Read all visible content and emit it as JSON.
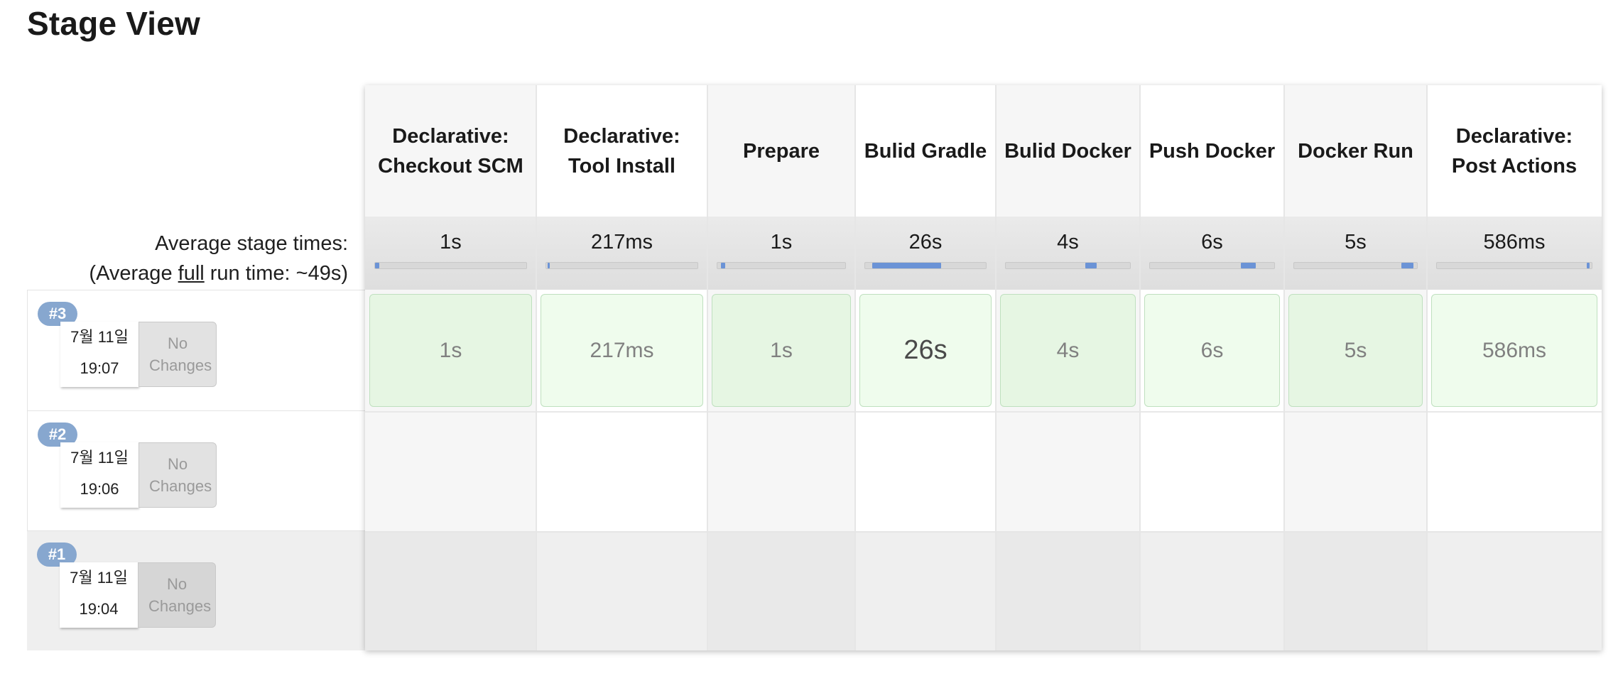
{
  "page": {
    "title": "Stage View"
  },
  "summary": {
    "line1": "Average stage times:",
    "line2_prefix": "(Average ",
    "line2_link": "full",
    "line2_suffix": " run time: ~49s)"
  },
  "stages": [
    {
      "name": "Declarative: Checkout SCM",
      "avg": "1s",
      "bar_start": 0.0,
      "bar_fill": 0.03
    },
    {
      "name": "Declarative: Tool Install",
      "avg": "217ms",
      "bar_start": 0.01,
      "bar_fill": 0.01
    },
    {
      "name": "Prepare",
      "avg": "1s",
      "bar_start": 0.03,
      "bar_fill": 0.03
    },
    {
      "name": "Bulid Gradle",
      "avg": "26s",
      "bar_start": 0.06,
      "bar_fill": 0.57
    },
    {
      "name": "Bulid Docker",
      "avg": "4s",
      "bar_start": 0.64,
      "bar_fill": 0.09
    },
    {
      "name": "Push Docker",
      "avg": "6s",
      "bar_start": 0.73,
      "bar_fill": 0.12
    },
    {
      "name": "Docker Run",
      "avg": "5s",
      "bar_start": 0.87,
      "bar_fill": 0.1
    },
    {
      "name": "Declarative: Post Actions",
      "avg": "586ms",
      "bar_start": 0.97,
      "bar_fill": 0.01
    }
  ],
  "builds": [
    {
      "number": "#3",
      "date": "7월 11일",
      "time": "19:07",
      "changes": "No Changes",
      "stage_times": [
        "1s",
        "217ms",
        "1s",
        "26s",
        "4s",
        "6s",
        "5s",
        "586ms"
      ]
    },
    {
      "number": "#2",
      "date": "7월 11일",
      "time": "19:06",
      "changes": "No Changes",
      "stage_times": []
    },
    {
      "number": "#1",
      "date": "7월 11일",
      "time": "19:04",
      "changes": "No Changes",
      "stage_times": []
    }
  ],
  "colors": {
    "success_light": "#effced",
    "success_dark": "#e6f6e3",
    "progress": "#6b93d6",
    "badge": "#87a7cf"
  }
}
